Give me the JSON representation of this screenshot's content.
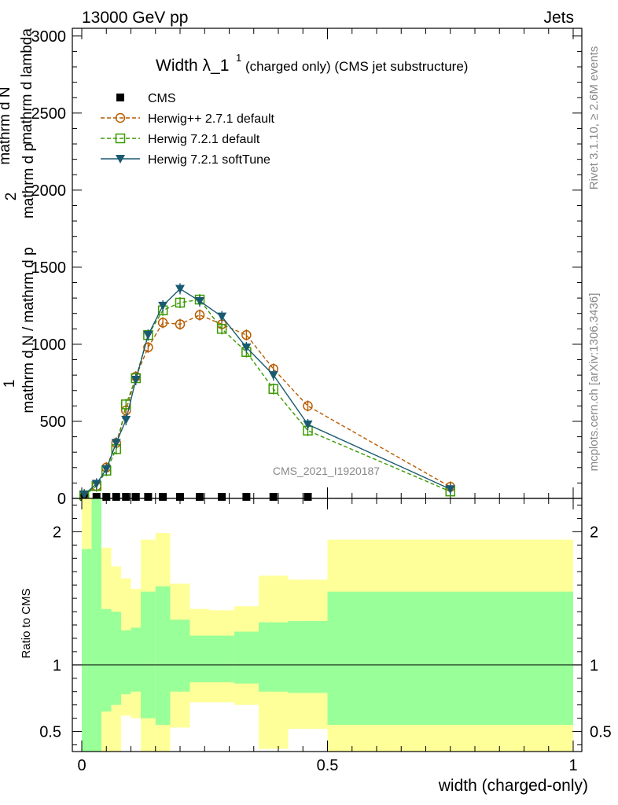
{
  "header": {
    "left": "13000 GeV pp",
    "right": "Jets"
  },
  "side_text": {
    "rivet": "Rivet 3.1.10, ≥ 2.6M events",
    "mcplots": "mcplots.cern.ch [arXiv:1306.3436]"
  },
  "chart_data": [
    {
      "type": "line",
      "title_main": "Width λ_1",
      "title_sup": "1",
      "title_rest": "(charged only) (CMS jet substructure)",
      "analysis_label": "CMS_2021_I1920187",
      "ylabel_parts": [
        "1",
        "mathrm d N / mathrm d p",
        "T",
        "mathrm d lambda",
        "mathrm d",
        "2",
        "N",
        "mathrm d p",
        "T",
        "mathrm d",
        "mathrm d N"
      ],
      "xlim": [
        0,
        1
      ],
      "ylim": [
        0,
        3050
      ],
      "yticks": [
        0,
        500,
        1000,
        1500,
        2000,
        2500,
        3000
      ],
      "ytick_labels": [
        "0",
        "500",
        "1000",
        "1500",
        "2000",
        "2500",
        "3000"
      ],
      "legend_position": "top-left",
      "series": [
        {
          "name": "CMS",
          "color": "#000000",
          "marker": "square-filled",
          "x": [
            0.005,
            0.03,
            0.05,
            0.07,
            0.09,
            0.11,
            0.135,
            0.165,
            0.2,
            0.24,
            0.285,
            0.335,
            0.39,
            0.46,
            0.75
          ],
          "y": [
            2,
            2,
            2,
            2,
            2,
            2,
            2,
            2,
            2,
            2,
            2,
            2,
            2,
            2,
            0
          ]
        },
        {
          "name": "Herwig++ 2.7.1 default",
          "color": "#b85c00",
          "marker": "circle-open",
          "x": [
            0.005,
            0.03,
            0.05,
            0.07,
            0.09,
            0.11,
            0.135,
            0.165,
            0.2,
            0.24,
            0.285,
            0.335,
            0.39,
            0.46,
            0.75
          ],
          "y": [
            20,
            80,
            200,
            360,
            570,
            790,
            980,
            1140,
            1130,
            1190,
            1130,
            1060,
            840,
            600,
            75
          ]
        },
        {
          "name": "Herwig 7.2.1 default",
          "color": "#3a9a00",
          "marker": "square-open",
          "x": [
            0.005,
            0.03,
            0.05,
            0.07,
            0.09,
            0.11,
            0.135,
            0.165,
            0.2,
            0.24,
            0.285,
            0.335,
            0.39,
            0.46,
            0.75
          ],
          "y": [
            20,
            80,
            180,
            320,
            610,
            780,
            1060,
            1220,
            1270,
            1290,
            1100,
            950,
            710,
            440,
            45
          ]
        },
        {
          "name": "Herwig 7.2.1 softTune",
          "color": "#1a5a70",
          "marker": "triangle-down-filled",
          "x": [
            0.005,
            0.03,
            0.05,
            0.07,
            0.09,
            0.11,
            0.135,
            0.165,
            0.2,
            0.24,
            0.285,
            0.335,
            0.39,
            0.46,
            0.75
          ],
          "y": [
            25,
            95,
            190,
            360,
            510,
            770,
            1060,
            1250,
            1360,
            1280,
            1180,
            980,
            800,
            480,
            60
          ]
        }
      ]
    },
    {
      "type": "area",
      "ylabel": "Ratio to CMS",
      "xlabel": "width (charged-only)",
      "xlim": [
        0,
        1
      ],
      "ylim": [
        0.35,
        2.25
      ],
      "xticks": [
        0,
        0.5,
        1
      ],
      "xtick_labels": [
        "0",
        "0.5",
        "1"
      ],
      "yticks": [
        0.5,
        1,
        2
      ],
      "ytick_labels": [
        "0.5",
        "1",
        "2"
      ],
      "band_colors": {
        "inner": "#99ff99",
        "outer": "#ffff99"
      },
      "bin_edges": [
        0,
        0.02,
        0.04,
        0.06,
        0.08,
        0.1,
        0.12,
        0.15,
        0.18,
        0.22,
        0.26,
        0.31,
        0.36,
        0.42,
        0.5,
        1.0
      ],
      "band_stat_low": [
        0.3,
        0.3,
        0.65,
        0.7,
        0.78,
        0.8,
        0.6,
        0.55,
        0.8,
        0.87,
        0.87,
        0.86,
        0.8,
        0.79,
        0.55
      ],
      "band_stat_high": [
        1.87,
        2.3,
        1.42,
        1.4,
        1.26,
        1.28,
        1.55,
        1.59,
        1.34,
        1.22,
        1.22,
        1.25,
        1.32,
        1.33,
        1.55
      ],
      "band_total_low": [
        0.3,
        0.3,
        0.3,
        0.3,
        0.62,
        0.6,
        0.3,
        0.3,
        0.53,
        0.72,
        0.72,
        0.7,
        0.37,
        0.52,
        0.35
      ],
      "band_total_high": [
        2.3,
        2.3,
        1.88,
        1.74,
        1.65,
        1.57,
        1.94,
        1.99,
        1.61,
        1.42,
        1.41,
        1.44,
        1.67,
        1.64,
        1.94
      ],
      "reference_line": 1
    }
  ]
}
